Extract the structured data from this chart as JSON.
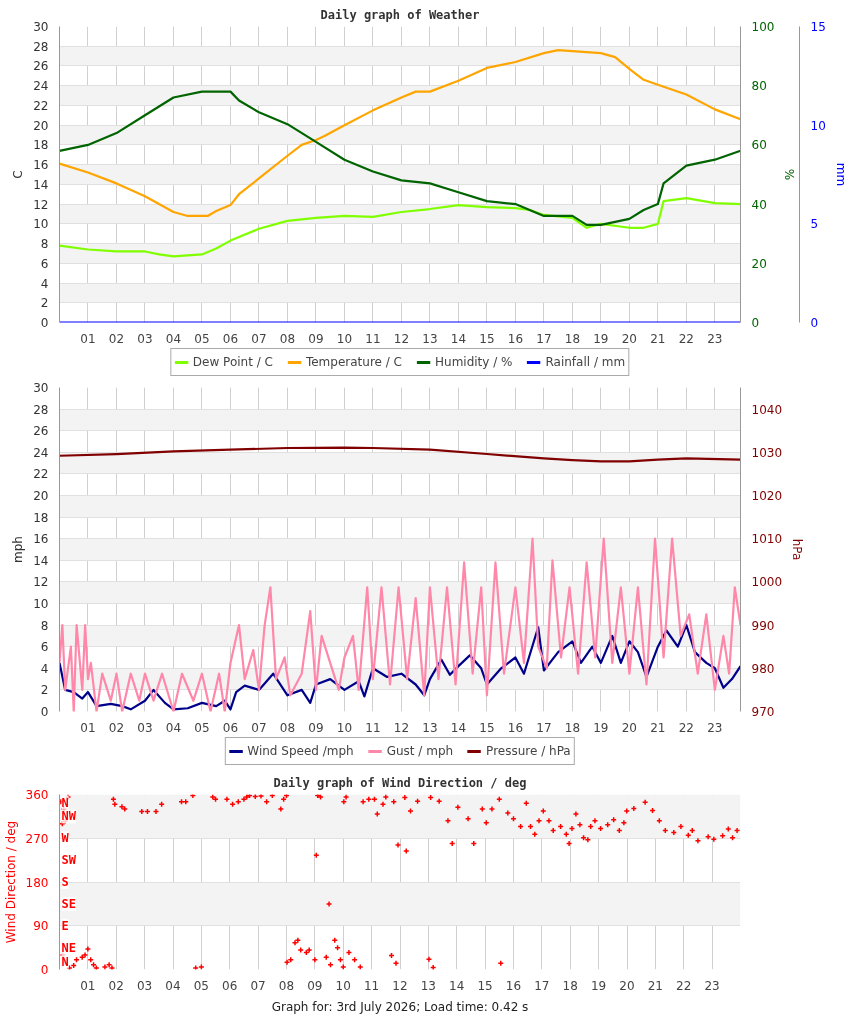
{
  "chart_data": [
    {
      "type": "line",
      "title": "Daily graph of Weather",
      "ylabel": "C",
      "y2label": "%",
      "y3label": "mm",
      "xlim": [
        0,
        23.9
      ],
      "xticks": [
        {
          "value": 1,
          "label": "01"
        },
        {
          "value": 2,
          "label": "02"
        },
        {
          "value": 3,
          "label": "03"
        },
        {
          "value": 4,
          "label": "04"
        },
        {
          "value": 5,
          "label": "05"
        },
        {
          "value": 6,
          "label": "06"
        },
        {
          "value": 7,
          "label": "07"
        },
        {
          "value": 8,
          "label": "08"
        },
        {
          "value": 9,
          "label": "09"
        },
        {
          "value": 10,
          "label": "10"
        },
        {
          "value": 11,
          "label": "11"
        },
        {
          "value": 12,
          "label": "12"
        },
        {
          "value": 13,
          "label": "13"
        },
        {
          "value": 14,
          "label": "14"
        },
        {
          "value": 15,
          "label": "15"
        },
        {
          "value": 16,
          "label": "16"
        },
        {
          "value": 17,
          "label": "17"
        },
        {
          "value": 18,
          "label": "18"
        },
        {
          "value": 19,
          "label": "19"
        },
        {
          "value": 20,
          "label": "20"
        },
        {
          "value": 21,
          "label": "21"
        },
        {
          "value": 22,
          "label": "22"
        },
        {
          "value": 23,
          "label": "23"
        }
      ],
      "ylim": [
        0,
        30
      ],
      "yticks": [
        0,
        2,
        4,
        6,
        8,
        10,
        12,
        14,
        16,
        18,
        20,
        22,
        24,
        26,
        28,
        30
      ],
      "y2lim": [
        0,
        100
      ],
      "y2ticks": [
        0,
        20,
        40,
        60,
        80,
        100
      ],
      "y3lim": [
        0,
        15
      ],
      "y3ticks": [
        0,
        5,
        10,
        15
      ],
      "grid": true,
      "legend": "bottom",
      "series": [
        {
          "name": "Dew Point / C",
          "color": "#80ff00",
          "x": [
            0,
            1,
            2,
            3,
            3.5,
            4,
            5,
            5.5,
            6,
            7,
            8,
            9,
            10,
            11,
            12,
            13,
            14,
            15,
            16,
            16.5,
            17,
            18,
            18.5,
            19,
            20,
            20.5,
            21,
            21.2,
            22,
            23,
            23.9
          ],
          "values": [
            7.8,
            7.4,
            7.2,
            7.2,
            6.9,
            6.7,
            6.9,
            7.5,
            8.3,
            9.5,
            10.3,
            10.6,
            10.8,
            10.7,
            11.2,
            11.5,
            11.9,
            11.7,
            11.6,
            11.4,
            10.9,
            10.6,
            9.6,
            10.0,
            9.6,
            9.6,
            10.0,
            12.3,
            12.6,
            12.1,
            12.0
          ]
        },
        {
          "name": "Temperature / C",
          "color": "#ffa500",
          "x": [
            0,
            1,
            2,
            3,
            4,
            4.5,
            5.2,
            5.5,
            6,
            6.3,
            7,
            8,
            8.5,
            9,
            9.3,
            10,
            11,
            12,
            12.5,
            13,
            14,
            15,
            16,
            17,
            17.5,
            18,
            19,
            19.5,
            20,
            20.5,
            21,
            22,
            23,
            23.9
          ],
          "values": [
            16.1,
            15.2,
            14.1,
            12.8,
            11.2,
            10.8,
            10.8,
            11.3,
            11.9,
            13.0,
            14.6,
            16.9,
            18.0,
            18.5,
            18.9,
            20.0,
            21.5,
            22.8,
            23.4,
            23.4,
            24.5,
            25.8,
            26.4,
            27.3,
            27.6,
            27.5,
            27.3,
            26.9,
            25.7,
            24.6,
            24.1,
            23.1,
            21.6,
            20.6
          ]
        },
        {
          "name": "Humidity / %",
          "color": "#006400",
          "axis": "y2",
          "x": [
            0,
            1,
            2,
            3,
            4,
            5,
            6,
            6.3,
            7,
            8,
            9,
            10,
            11,
            12,
            13,
            14,
            15,
            16,
            17,
            18,
            18.5,
            19,
            20,
            20.5,
            21,
            21.2,
            22,
            23,
            23.9
          ],
          "values": [
            58,
            60,
            64,
            70,
            76,
            78,
            78,
            75,
            71,
            67,
            61,
            55,
            51,
            48,
            47,
            44,
            41,
            40,
            36,
            36,
            33,
            33,
            35,
            38,
            40,
            47,
            53,
            55,
            58
          ]
        },
        {
          "name": "Rainfall / mm",
          "color": "#0000ff",
          "axis": "y3",
          "x": [
            0,
            23.9
          ],
          "values": [
            0,
            0
          ]
        }
      ]
    },
    {
      "type": "line",
      "ylabel": "mph",
      "y2label": "hPa",
      "xlim": [
        0,
        23.9
      ],
      "xticks": [
        {
          "value": 1,
          "label": "01"
        },
        {
          "value": 2,
          "label": "02"
        },
        {
          "value": 3,
          "label": "03"
        },
        {
          "value": 4,
          "label": "04"
        },
        {
          "value": 5,
          "label": "05"
        },
        {
          "value": 6,
          "label": "06"
        },
        {
          "value": 7,
          "label": "07"
        },
        {
          "value": 8,
          "label": "08"
        },
        {
          "value": 9,
          "label": "09"
        },
        {
          "value": 10,
          "label": "10"
        },
        {
          "value": 11,
          "label": "11"
        },
        {
          "value": 12,
          "label": "12"
        },
        {
          "value": 13,
          "label": "13"
        },
        {
          "value": 14,
          "label": "14"
        },
        {
          "value": 15,
          "label": "15"
        },
        {
          "value": 16,
          "label": "16"
        },
        {
          "value": 17,
          "label": "17"
        },
        {
          "value": 18,
          "label": "18"
        },
        {
          "value": 19,
          "label": "19"
        },
        {
          "value": 20,
          "label": "20"
        },
        {
          "value": 21,
          "label": "21"
        },
        {
          "value": 22,
          "label": "22"
        },
        {
          "value": 23,
          "label": "23"
        }
      ],
      "ylim": [
        0,
        30
      ],
      "yticks": [
        0,
        2,
        4,
        6,
        8,
        10,
        12,
        14,
        16,
        18,
        20,
        22,
        24,
        26,
        28,
        30
      ],
      "y2lim": [
        970,
        1045
      ],
      "y2ticks": [
        970,
        980,
        990,
        1000,
        1010,
        1020,
        1030,
        1040
      ],
      "grid": true,
      "legend": "bottom",
      "series": [
        {
          "name": "Wind Speed /mph",
          "color": "#00008b",
          "x": [
            0,
            0.2,
            0.5,
            0.8,
            1.0,
            1.3,
            1.8,
            2.2,
            2.5,
            3.0,
            3.3,
            3.7,
            4.0,
            4.5,
            5.0,
            5.5,
            5.8,
            6.0,
            6.2,
            6.5,
            7.0,
            7.5,
            8.0,
            8.5,
            8.8,
            9.0,
            9.5,
            10.0,
            10.5,
            10.7,
            11.0,
            11.5,
            12.0,
            12.5,
            12.8,
            13.0,
            13.4,
            13.7,
            14.0,
            14.4,
            14.8,
            15.0,
            15.5,
            16.0,
            16.3,
            16.8,
            17.0,
            17.5,
            18.0,
            18.3,
            18.7,
            19.0,
            19.4,
            19.7,
            20.0,
            20.3,
            20.6,
            21.0,
            21.3,
            21.7,
            22.0,
            22.3,
            22.7,
            23.0,
            23.3,
            23.6,
            23.9
          ],
          "values": [
            4.5,
            2.0,
            1.8,
            1.2,
            1.8,
            0.5,
            0.7,
            0.5,
            0.2,
            1.0,
            2.0,
            0.8,
            0.2,
            0.3,
            0.8,
            0.5,
            1.0,
            0.2,
            1.8,
            2.4,
            2.0,
            3.5,
            1.5,
            2.0,
            0.8,
            2.5,
            3.0,
            2.0,
            2.8,
            1.4,
            4.0,
            3.2,
            3.5,
            2.5,
            1.5,
            3.0,
            4.8,
            3.4,
            4.2,
            5.2,
            4.0,
            2.5,
            4.0,
            5.0,
            3.5,
            7.8,
            3.8,
            5.5,
            6.5,
            4.5,
            6.0,
            4.5,
            7.0,
            4.5,
            6.5,
            5.5,
            3.2,
            6.0,
            7.5,
            6.0,
            8.0,
            5.5,
            4.5,
            4.0,
            2.2,
            3.0,
            4.2
          ]
        },
        {
          "name": "Gust / mph",
          "color": "#ff88aa",
          "x": [
            0,
            0.1,
            0.2,
            0.4,
            0.5,
            0.6,
            0.8,
            0.9,
            1.0,
            1.1,
            1.3,
            1.5,
            1.8,
            2.0,
            2.2,
            2.5,
            2.8,
            3.0,
            3.3,
            3.6,
            4.0,
            4.3,
            4.7,
            5.0,
            5.3,
            5.6,
            5.8,
            6.0,
            6.3,
            6.5,
            6.8,
            7.0,
            7.2,
            7.4,
            7.6,
            7.9,
            8.1,
            8.5,
            8.8,
            9.0,
            9.2,
            9.5,
            9.8,
            10.0,
            10.3,
            10.5,
            10.8,
            11.0,
            11.3,
            11.6,
            11.9,
            12.2,
            12.5,
            12.8,
            13.0,
            13.3,
            13.6,
            13.9,
            14.2,
            14.5,
            14.8,
            15.0,
            15.3,
            15.6,
            16.0,
            16.3,
            16.6,
            16.8,
            17.1,
            17.3,
            17.6,
            17.9,
            18.2,
            18.5,
            18.8,
            19.1,
            19.4,
            19.7,
            20.0,
            20.3,
            20.6,
            20.9,
            21.2,
            21.5,
            21.8,
            22.1,
            22.4,
            22.7,
            23.0,
            23.3,
            23.5,
            23.7,
            23.9
          ],
          "values": [
            4.5,
            8,
            2,
            6,
            0,
            8,
            2,
            8,
            3,
            4.5,
            0,
            3.5,
            1,
            3.5,
            0,
            3.5,
            1,
            3.5,
            1,
            3.5,
            0,
            3.5,
            1,
            3.5,
            0,
            3.5,
            0,
            4.5,
            8,
            3,
            5.7,
            2,
            8,
            11.5,
            3,
            5,
            1.5,
            3.5,
            9.3,
            2,
            7,
            4.5,
            2,
            5,
            7,
            2,
            11.5,
            3,
            11.5,
            2.5,
            11.5,
            3,
            10.5,
            1.5,
            11.5,
            3,
            11.5,
            2.5,
            13.8,
            3.5,
            11.5,
            1.5,
            13.8,
            3.5,
            11.5,
            4.5,
            16,
            6,
            4,
            14,
            5,
            11.5,
            3.5,
            13.8,
            5,
            16,
            4.5,
            11.5,
            3.5,
            11.5,
            2.5,
            16,
            5,
            16,
            7,
            9,
            3.5,
            9,
            2,
            7,
            3.5,
            11.5,
            8
          ]
        },
        {
          "name": "Pressure / hPa",
          "color": "#800000",
          "axis": "y2",
          "x": [
            0,
            2,
            4,
            6,
            8,
            10,
            11,
            13,
            15,
            17,
            18,
            19,
            20,
            21,
            22,
            23.9
          ],
          "values": [
            1029.2,
            1029.6,
            1030.2,
            1030.6,
            1031.0,
            1031.1,
            1031.0,
            1030.6,
            1029.6,
            1028.6,
            1028.2,
            1027.9,
            1027.9,
            1028.3,
            1028.6,
            1028.3
          ]
        }
      ]
    },
    {
      "type": "scatter",
      "title": "Daily graph of Wind Direction / deg",
      "ylabel": "Wind Direction / deg",
      "xlim": [
        0,
        24
      ],
      "xticks": [
        {
          "value": 1,
          "label": "01"
        },
        {
          "value": 2,
          "label": "02"
        },
        {
          "value": 3,
          "label": "03"
        },
        {
          "value": 4,
          "label": "04"
        },
        {
          "value": 5,
          "label": "05"
        },
        {
          "value": 6,
          "label": "06"
        },
        {
          "value": 7,
          "label": "07"
        },
        {
          "value": 8,
          "label": "08"
        },
        {
          "value": 9,
          "label": "09"
        },
        {
          "value": 10,
          "label": "10"
        },
        {
          "value": 11,
          "label": "11"
        },
        {
          "value": 12,
          "label": "12"
        },
        {
          "value": 13,
          "label": "13"
        },
        {
          "value": 14,
          "label": "14"
        },
        {
          "value": 15,
          "label": "15"
        },
        {
          "value": 16,
          "label": "16"
        },
        {
          "value": 17,
          "label": "17"
        },
        {
          "value": 18,
          "label": "18"
        },
        {
          "value": 19,
          "label": "19"
        },
        {
          "value": 20,
          "label": "20"
        },
        {
          "value": 21,
          "label": "21"
        },
        {
          "value": 22,
          "label": "22"
        },
        {
          "value": 23,
          "label": "23"
        }
      ],
      "ylim": [
        0,
        360
      ],
      "yticks": [
        0,
        90,
        180,
        270,
        360
      ],
      "grid": true,
      "marker": "cross",
      "annotations": [
        "N",
        "NE",
        "E",
        "SE",
        "S",
        "SW",
        "W",
        "NW",
        "N",
        "Graph for: 3rd July 2026; Load time: 0.42 s"
      ],
      "series": [
        {
          "color": "#ff0000",
          "x": [
            0.05,
            0.1,
            0.15,
            0.2,
            0.3,
            0.12,
            0.2,
            0.35,
            0.5,
            0.6,
            0.8,
            0.9,
            1.0,
            1.1,
            1.2,
            1.3,
            1.6,
            1.75,
            1.85,
            1.9,
            1.95,
            2.2,
            2.3,
            2.9,
            3.1,
            3.4,
            3.6,
            4.3,
            4.45,
            4.7,
            4.8,
            5.0,
            5.4,
            5.5,
            5.9,
            6.1,
            6.3,
            6.5,
            6.6,
            6.7,
            6.9,
            7.1,
            7.3,
            7.5,
            7.8,
            7.9,
            8.0,
            8.02,
            8.15,
            8.3,
            8.4,
            8.5,
            8.7,
            8.8,
            9.0,
            9.05,
            9.1,
            9.2,
            9.5,
            9.4,
            9.55,
            9.7,
            9.8,
            9.9,
            10.0,
            10.02,
            10.1,
            10.2,
            10.4,
            10.6,
            10.7,
            10.9,
            11.1,
            11.2,
            11.4,
            11.5,
            11.7,
            11.78,
            11.86,
            11.93,
            12.22,
            12.17,
            12.37,
            12.62,
            13.02,
            13.08,
            13.17,
            13.38,
            13.69,
            13.84,
            14.04,
            14.4,
            14.6,
            14.9,
            15.04,
            15.24,
            15.5,
            15.55,
            15.8,
            16.0,
            16.25,
            16.45,
            16.6,
            16.75,
            16.9,
            17.05,
            17.25,
            17.4,
            17.66,
            17.86,
            17.96,
            18.06,
            18.2,
            18.34,
            18.47,
            18.62,
            18.72,
            18.87,
            19.07,
            19.32,
            19.53,
            19.73,
            19.89,
            19.99,
            20.24,
            20.64,
            20.9,
            21.14,
            21.35,
            21.65,
            21.9,
            22.16,
            22.3,
            22.5,
            22.86,
            23.06,
            23.37,
            23.57,
            23.72,
            23.88
          ],
          "values": [
            345,
            300,
            330,
            305,
            355,
            30,
            15,
            3,
            8,
            20,
            25,
            30,
            42,
            20,
            10,
            3,
            5,
            10,
            3,
            350,
            340,
            335,
            330,
            325,
            325,
            325,
            340,
            345,
            345,
            358,
            3,
            5,
            355,
            350,
            350,
            340,
            345,
            350,
            355,
            358,
            356,
            357,
            345,
            358,
            330,
            350,
            358,
            15,
            20,
            55,
            60,
            40,
            35,
            40,
            20,
            235,
            358,
            355,
            135,
            25,
            10,
            60,
            45,
            20,
            5,
            345,
            355,
            35,
            20,
            5,
            345,
            350,
            350,
            320,
            340,
            355,
            29,
            345,
            13,
            256,
            244,
            354,
            326,
            346,
            21,
            354,
            4,
            346,
            306,
            259,
            334,
            310,
            259,
            330,
            302,
            330,
            350,
            13,
            322,
            310,
            294,
            342,
            294,
            278,
            306,
            326,
            306,
            286,
            294,
            278,
            259,
            290,
            320,
            298,
            271,
            267,
            294,
            306,
            290,
            298,
            308,
            286,
            302,
            326,
            331,
            344,
            327,
            306,
            286,
            282,
            294,
            276,
            286,
            265,
            273,
            268,
            275,
            289,
            271,
            286
          ]
        }
      ]
    }
  ]
}
